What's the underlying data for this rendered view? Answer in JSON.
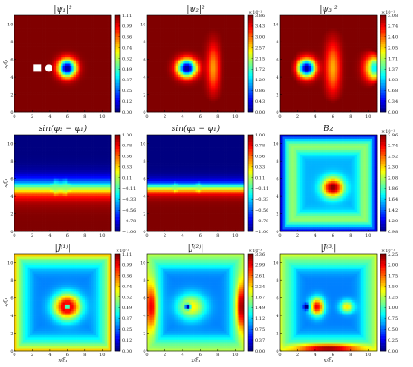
{
  "chart_data": [
    {
      "type": "heatmap",
      "title": "|ψ₁|²",
      "xlabel": "",
      "ylabel": "x/ξ₁",
      "xlim": [
        0,
        11
      ],
      "ylim": [
        0,
        11
      ],
      "x_ticks": [
        "0",
        "2",
        "4",
        "6",
        "8",
        "10"
      ],
      "y_ticks": [
        "0",
        "2",
        "4",
        "6",
        "8",
        "10"
      ],
      "colorbar": {
        "ticks": [
          "1.11",
          "0.99",
          "0.86",
          "0.74",
          "0.62",
          "0.49",
          "0.37",
          "0.25",
          "0.12",
          "0.00"
        ],
        "exponent": ""
      },
      "field": {
        "background": 1.0,
        "blobs": [
          {
            "x": 6.0,
            "y": 5.0,
            "sx": 1.0,
            "sy": 1.0,
            "amp": -1.0
          }
        ],
        "edge": 0
      },
      "markers": [
        {
          "shape": "square",
          "x": 2.6,
          "y": 5.0
        },
        {
          "shape": "circle",
          "x": 3.9,
          "y": 5.0
        }
      ]
    },
    {
      "type": "heatmap",
      "title": "|ψ₂|²",
      "xlabel": "",
      "ylabel": "",
      "xlim": [
        0,
        11
      ],
      "ylim": [
        0,
        11
      ],
      "x_ticks": [
        "0",
        "2",
        "4",
        "6",
        "8",
        "10"
      ],
      "y_ticks": [
        "0",
        "2",
        "4",
        "6",
        "8",
        "10"
      ],
      "colorbar": {
        "ticks": [
          "3.86",
          "3.43",
          "3.00",
          "2.57",
          "2.15",
          "1.72",
          "1.29",
          "0.86",
          "0.43",
          "0.00"
        ],
        "exponent": "×10⁻¹"
      },
      "field": {
        "background": 1.0,
        "blobs": [
          {
            "x": 4.5,
            "y": 5.0,
            "sx": 1.1,
            "sy": 1.0,
            "amp": -1.0
          },
          {
            "x": 7.5,
            "y": 5.0,
            "sx": 0.7,
            "sy": 2.6,
            "amp": -0.28
          }
        ],
        "edge": 0.15
      }
    },
    {
      "type": "heatmap",
      "title": "|ψ₃|²",
      "xlabel": "",
      "ylabel": "",
      "xlim": [
        0,
        11
      ],
      "ylim": [
        0,
        11
      ],
      "x_ticks": [
        "0",
        "2",
        "4",
        "6",
        "8",
        "10"
      ],
      "y_ticks": [
        "0",
        "2",
        "4",
        "6",
        "8",
        "10"
      ],
      "colorbar": {
        "ticks": [
          "3.08",
          "2.74",
          "2.40",
          "2.05",
          "1.71",
          "1.37",
          "1.03",
          "0.68",
          "0.34",
          "0.00"
        ],
        "exponent": "×10⁻¹"
      },
      "field": {
        "background": 1.0,
        "blobs": [
          {
            "x": 3.0,
            "y": 5.0,
            "sx": 1.0,
            "sy": 1.0,
            "amp": -1.0
          },
          {
            "x": 6.0,
            "y": 5.0,
            "sx": 0.8,
            "sy": 2.8,
            "amp": -0.3
          },
          {
            "x": 11.0,
            "y": 5.0,
            "sx": 1.2,
            "sy": 1.5,
            "amp": -0.8
          }
        ],
        "edge": 0.2
      }
    },
    {
      "type": "heatmap",
      "title": "sin(φ₂ − φ₁)",
      "xlabel": "",
      "ylabel": "x/ξ₁",
      "xlim": [
        0,
        11
      ],
      "ylim": [
        0,
        11
      ],
      "x_ticks": [
        "0",
        "2",
        "4",
        "6",
        "8",
        "10"
      ],
      "y_ticks": [
        "0",
        "2",
        "4",
        "6",
        "8",
        "10"
      ],
      "colorbar": {
        "ticks": [
          "1.00",
          "0.78",
          "0.56",
          "0.33",
          "0.11",
          "−0.11",
          "−0.33",
          "−0.56",
          "−0.78",
          "−1.00"
        ],
        "exponent": ""
      },
      "phase": {
        "vortices": [
          {
            "x": 4.5,
            "y": 5.0
          },
          {
            "x": 6.0,
            "y": 5.0
          }
        ],
        "width": 1.2
      }
    },
    {
      "type": "heatmap",
      "title": "sin(φ₃ − φ₁)",
      "xlabel": "",
      "ylabel": "",
      "xlim": [
        0,
        11
      ],
      "ylim": [
        0,
        11
      ],
      "x_ticks": [
        "0",
        "2",
        "4",
        "6",
        "8",
        "10"
      ],
      "y_ticks": [
        "0",
        "2",
        "4",
        "6",
        "8",
        "10"
      ],
      "colorbar": {
        "ticks": [
          "1.00",
          "0.78",
          "0.56",
          "0.33",
          "0.11",
          "−0.11",
          "−0.33",
          "−0.56",
          "−0.78",
          "−1.00"
        ],
        "exponent": ""
      },
      "phase": {
        "vortices": [
          {
            "x": 3.0,
            "y": 5.0
          },
          {
            "x": 6.0,
            "y": 5.0
          }
        ],
        "width": 0.8
      }
    },
    {
      "type": "heatmap",
      "title": "Bz",
      "xlabel": "",
      "ylabel": "",
      "xlim": [
        0,
        11
      ],
      "ylim": [
        0,
        11
      ],
      "x_ticks": [
        "0",
        "2",
        "4",
        "6",
        "8",
        "10"
      ],
      "y_ticks": [
        "0",
        "2",
        "4",
        "6",
        "8",
        "10"
      ],
      "colorbar": {
        "ticks": [
          "2.96",
          "2.74",
          "2.52",
          "2.30",
          "2.08",
          "1.86",
          "1.64",
          "1.42",
          "1.20",
          "0.98"
        ],
        "exponent": "×10⁻¹"
      },
      "field": {
        "background": 0.3,
        "blobs": [
          {
            "x": 6.0,
            "y": 5.0,
            "sx": 1.2,
            "sy": 1.1,
            "amp": 0.7
          }
        ],
        "edge": -0.3,
        "ring": {
          "r": 4.2,
          "amp": 0.25,
          "w": 0.9
        }
      }
    },
    {
      "type": "heatmap",
      "title": "|J⁽¹⁾|",
      "xlabel": "x/ξ₁",
      "ylabel": "x/ξ₁",
      "xlim": [
        0,
        11
      ],
      "ylim": [
        0,
        11
      ],
      "x_ticks": [
        "0",
        "2",
        "4",
        "6",
        "8",
        "10"
      ],
      "y_ticks": [
        "0",
        "2",
        "4",
        "6",
        "8",
        "10"
      ],
      "colorbar": {
        "ticks": [
          "1.11",
          "0.99",
          "0.86",
          "0.74",
          "0.62",
          "0.49",
          "0.37",
          "0.25",
          "0.12",
          "0.00"
        ],
        "exponent": "×10⁻¹"
      },
      "field": {
        "background": 0.25,
        "blobs": [
          {
            "x": 6.0,
            "y": 5.0,
            "sx": 1.5,
            "sy": 1.4,
            "amp": 0.75
          },
          {
            "x": 6.0,
            "y": 5.0,
            "sx": 0.25,
            "sy": 0.25,
            "amp": -0.9
          }
        ],
        "edge": 0.45,
        "ring": {
          "r": 4.6,
          "amp": 0.1,
          "w": 1.0
        }
      }
    },
    {
      "type": "heatmap",
      "title": "|J⁽²⁾|",
      "xlabel": "x/ξ₁",
      "ylabel": "",
      "xlim": [
        0,
        11
      ],
      "ylim": [
        0,
        11
      ],
      "x_ticks": [
        "0",
        "2",
        "4",
        "6",
        "8",
        "10"
      ],
      "y_ticks": [
        "0",
        "2",
        "4",
        "6",
        "8",
        "10"
      ],
      "colorbar": {
        "ticks": [
          "3.36",
          "2.99",
          "2.61",
          "2.24",
          "1.87",
          "1.49",
          "1.12",
          "0.75",
          "0.37",
          "0.00"
        ],
        "exponent": "×10⁻³"
      },
      "field": {
        "background": 0.25,
        "blobs": [
          {
            "x": 5.0,
            "y": 5.0,
            "sx": 1.6,
            "sy": 1.4,
            "amp": 0.4
          },
          {
            "x": 4.6,
            "y": 5.0,
            "sx": 0.3,
            "sy": 0.3,
            "amp": -0.7
          },
          {
            "x": 0.5,
            "y": 5.0,
            "sx": 0.6,
            "sy": 2.5,
            "amp": 0.4
          },
          {
            "x": 10.7,
            "y": 5.0,
            "sx": 0.6,
            "sy": 2.5,
            "amp": 0.45
          }
        ],
        "edge": 0.25,
        "ring": {
          "r": 4.7,
          "amp": 0.15,
          "w": 1.0
        }
      }
    },
    {
      "type": "heatmap",
      "title": "|J⁽³⁾|",
      "xlabel": "x/ξ₁",
      "ylabel": "",
      "xlim": [
        0,
        11
      ],
      "ylim": [
        0,
        11
      ],
      "x_ticks": [
        "0",
        "2",
        "4",
        "6",
        "8",
        "10"
      ],
      "y_ticks": [
        "0",
        "2",
        "4",
        "6",
        "8",
        "10"
      ],
      "colorbar": {
        "ticks": [
          "2.25",
          "2.00",
          "1.75",
          "1.50",
          "1.25",
          "1.00",
          "0.75",
          "0.50",
          "0.25",
          "0.00"
        ],
        "exponent": "×10⁻¹"
      },
      "field": {
        "background": 0.25,
        "blobs": [
          {
            "x": 4.2,
            "y": 5.0,
            "sx": 0.8,
            "sy": 1.0,
            "amp": 0.65
          },
          {
            "x": 3.0,
            "y": 5.0,
            "sx": 0.3,
            "sy": 0.3,
            "amp": -0.6
          },
          {
            "x": 7.6,
            "y": 5.0,
            "sx": 0.8,
            "sy": 0.7,
            "amp": 0.4
          },
          {
            "x": 5.5,
            "y": 0.3,
            "sx": 3.5,
            "sy": 0.4,
            "amp": 0.45
          }
        ],
        "edge": 0.3,
        "ring": {
          "r": 4.6,
          "amp": 0.15,
          "w": 1.0
        }
      }
    }
  ]
}
